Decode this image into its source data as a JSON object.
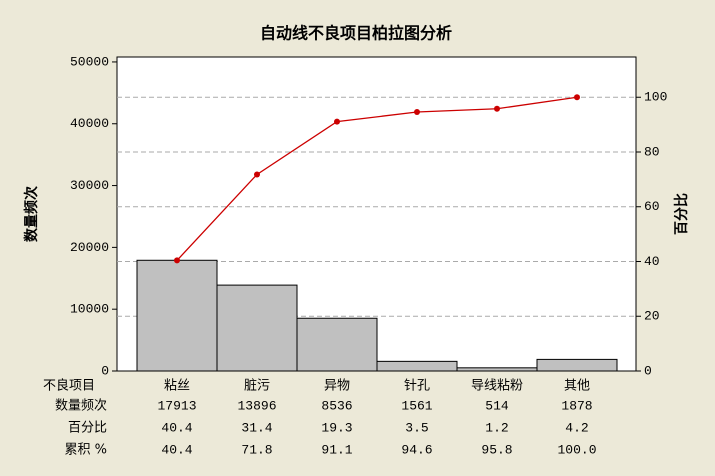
{
  "chart_data": {
    "type": "pareto",
    "title": "自动线不良项目柏拉图分析",
    "ylabel": "数量频次",
    "y2label": "百分比",
    "category_label": "不良项目",
    "categories": [
      "粘丝",
      "脏污",
      "异物",
      "针孔",
      "导线粘粉",
      "其他"
    ],
    "series": [
      {
        "name": "数量频次",
        "color": "#c0c0c0",
        "values": [
          17913,
          13896,
          8536,
          1561,
          514,
          1878
        ]
      },
      {
        "name": "累积 %",
        "color": "#cc0000",
        "axis": "y2",
        "values": [
          40.4,
          71.8,
          91.1,
          94.6,
          95.8,
          100
        ],
        "value_labels": [
          "40.4",
          "71.8",
          "91.1",
          "94.6",
          "95.8",
          "100.0"
        ]
      }
    ],
    "percent": {
      "name": "百分比",
      "values": [
        40.4,
        31.4,
        19.3,
        3.5,
        1.2,
        4.2
      ]
    },
    "ylim": [
      0,
      50800
    ],
    "yticks": [
      0,
      10000,
      20000,
      30000,
      40000,
      50000
    ],
    "y2lim": [
      0,
      114.7
    ],
    "y2ticks": [
      0,
      20,
      40,
      60,
      80,
      100
    ],
    "grid": true
  }
}
